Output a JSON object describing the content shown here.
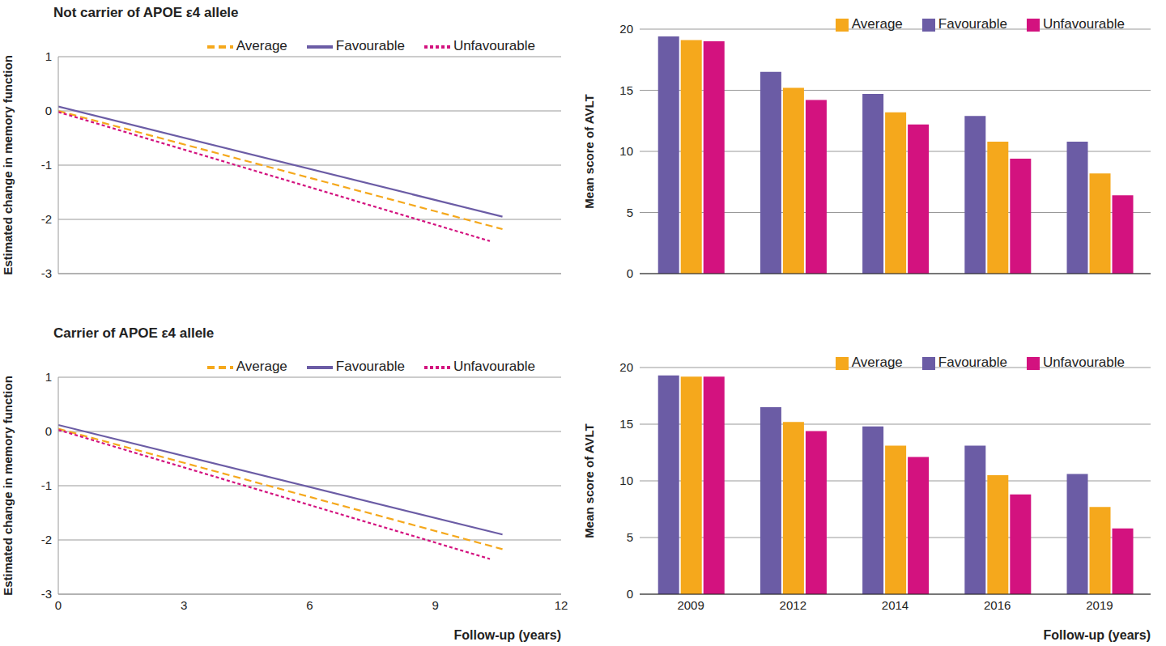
{
  "chart_data": [
    {
      "type": "line",
      "title": "Not carrier of APOE ε4 allele",
      "y_label": "Estimated change in memory function",
      "series": [
        {
          "name": "Favourable",
          "color": "#6b5ca5",
          "line_style": "solid",
          "x": [
            0,
            10.6
          ],
          "values": [
            0.08,
            -1.95
          ]
        },
        {
          "name": "Average",
          "color": "#f5a81c",
          "line_style": "dashed",
          "x": [
            0,
            10.6
          ],
          "values": [
            0.0,
            -2.18
          ]
        },
        {
          "name": "Unfavourable",
          "color": "#d3127f",
          "line_style": "densely_dashed",
          "x": [
            0,
            10.3
          ],
          "values": [
            -0.02,
            -2.4
          ]
        }
      ],
      "xlim": [
        0,
        12
      ],
      "xticks": [
        0,
        3,
        6,
        9,
        12
      ],
      "ylim": [
        -3,
        1
      ],
      "yticks": [
        -3,
        -2,
        -1,
        0,
        1
      ],
      "grid": true,
      "legend": "upper right",
      "tick_labels": "y"
    },
    {
      "type": "line",
      "title": "Carrier of APOE ε4 allele",
      "y_label": "Estimated change in memory function",
      "x_label": "Follow-up (years)",
      "series": [
        {
          "name": "Favourable",
          "color": "#6b5ca5",
          "line_style": "solid",
          "x": [
            0,
            10.6
          ],
          "values": [
            0.12,
            -1.9
          ]
        },
        {
          "name": "Average",
          "color": "#f5a81c",
          "line_style": "dashed",
          "x": [
            0,
            10.6
          ],
          "values": [
            0.05,
            -2.17
          ]
        },
        {
          "name": "Unfavourable",
          "color": "#d3127f",
          "line_style": "densely_dashed",
          "x": [
            0,
            10.3
          ],
          "values": [
            0.03,
            -2.35
          ]
        }
      ],
      "xlim": [
        0,
        12
      ],
      "xticks": [
        0,
        3,
        6,
        9,
        12
      ],
      "ylim": [
        -3,
        1
      ],
      "yticks": [
        -3,
        -2,
        -1,
        0,
        1
      ],
      "grid": true,
      "legend": "upper right"
    },
    {
      "type": "bar",
      "y_label": "Mean score of AVLT",
      "categories": [
        "2009",
        "2012",
        "2014",
        "2016",
        "2019"
      ],
      "series": [
        {
          "name": "Favourable",
          "color": "#6b5ca5",
          "values": [
            19.4,
            16.5,
            14.7,
            12.9,
            10.8
          ]
        },
        {
          "name": "Average",
          "color": "#f5a81c",
          "values": [
            19.1,
            15.2,
            13.2,
            10.8,
            8.2
          ]
        },
        {
          "name": "Unfavourable",
          "color": "#d3127f",
          "values": [
            19.0,
            14.2,
            12.2,
            9.4,
            6.4
          ]
        }
      ],
      "ylim": [
        0,
        20
      ],
      "yticks": [
        0,
        5,
        10,
        15,
        20
      ],
      "grid": true,
      "legend": "upper right",
      "tick_labels": "y"
    },
    {
      "type": "bar",
      "y_label": "Mean score of AVLT",
      "x_label": "Follow-up (years)",
      "categories": [
        "2009",
        "2012",
        "2014",
        "2016",
        "2019"
      ],
      "series": [
        {
          "name": "Favourable",
          "color": "#6b5ca5",
          "values": [
            19.3,
            16.5,
            14.8,
            13.1,
            10.6
          ]
        },
        {
          "name": "Average",
          "color": "#f5a81c",
          "values": [
            19.2,
            15.2,
            13.1,
            10.5,
            7.7
          ]
        },
        {
          "name": "Unfavourable",
          "color": "#d3127f",
          "values": [
            19.2,
            14.4,
            12.1,
            8.8,
            5.8
          ]
        }
      ],
      "ylim": [
        0,
        20
      ],
      "yticks": [
        0,
        5,
        10,
        15,
        20
      ],
      "grid": true,
      "legend": "upper right"
    }
  ]
}
